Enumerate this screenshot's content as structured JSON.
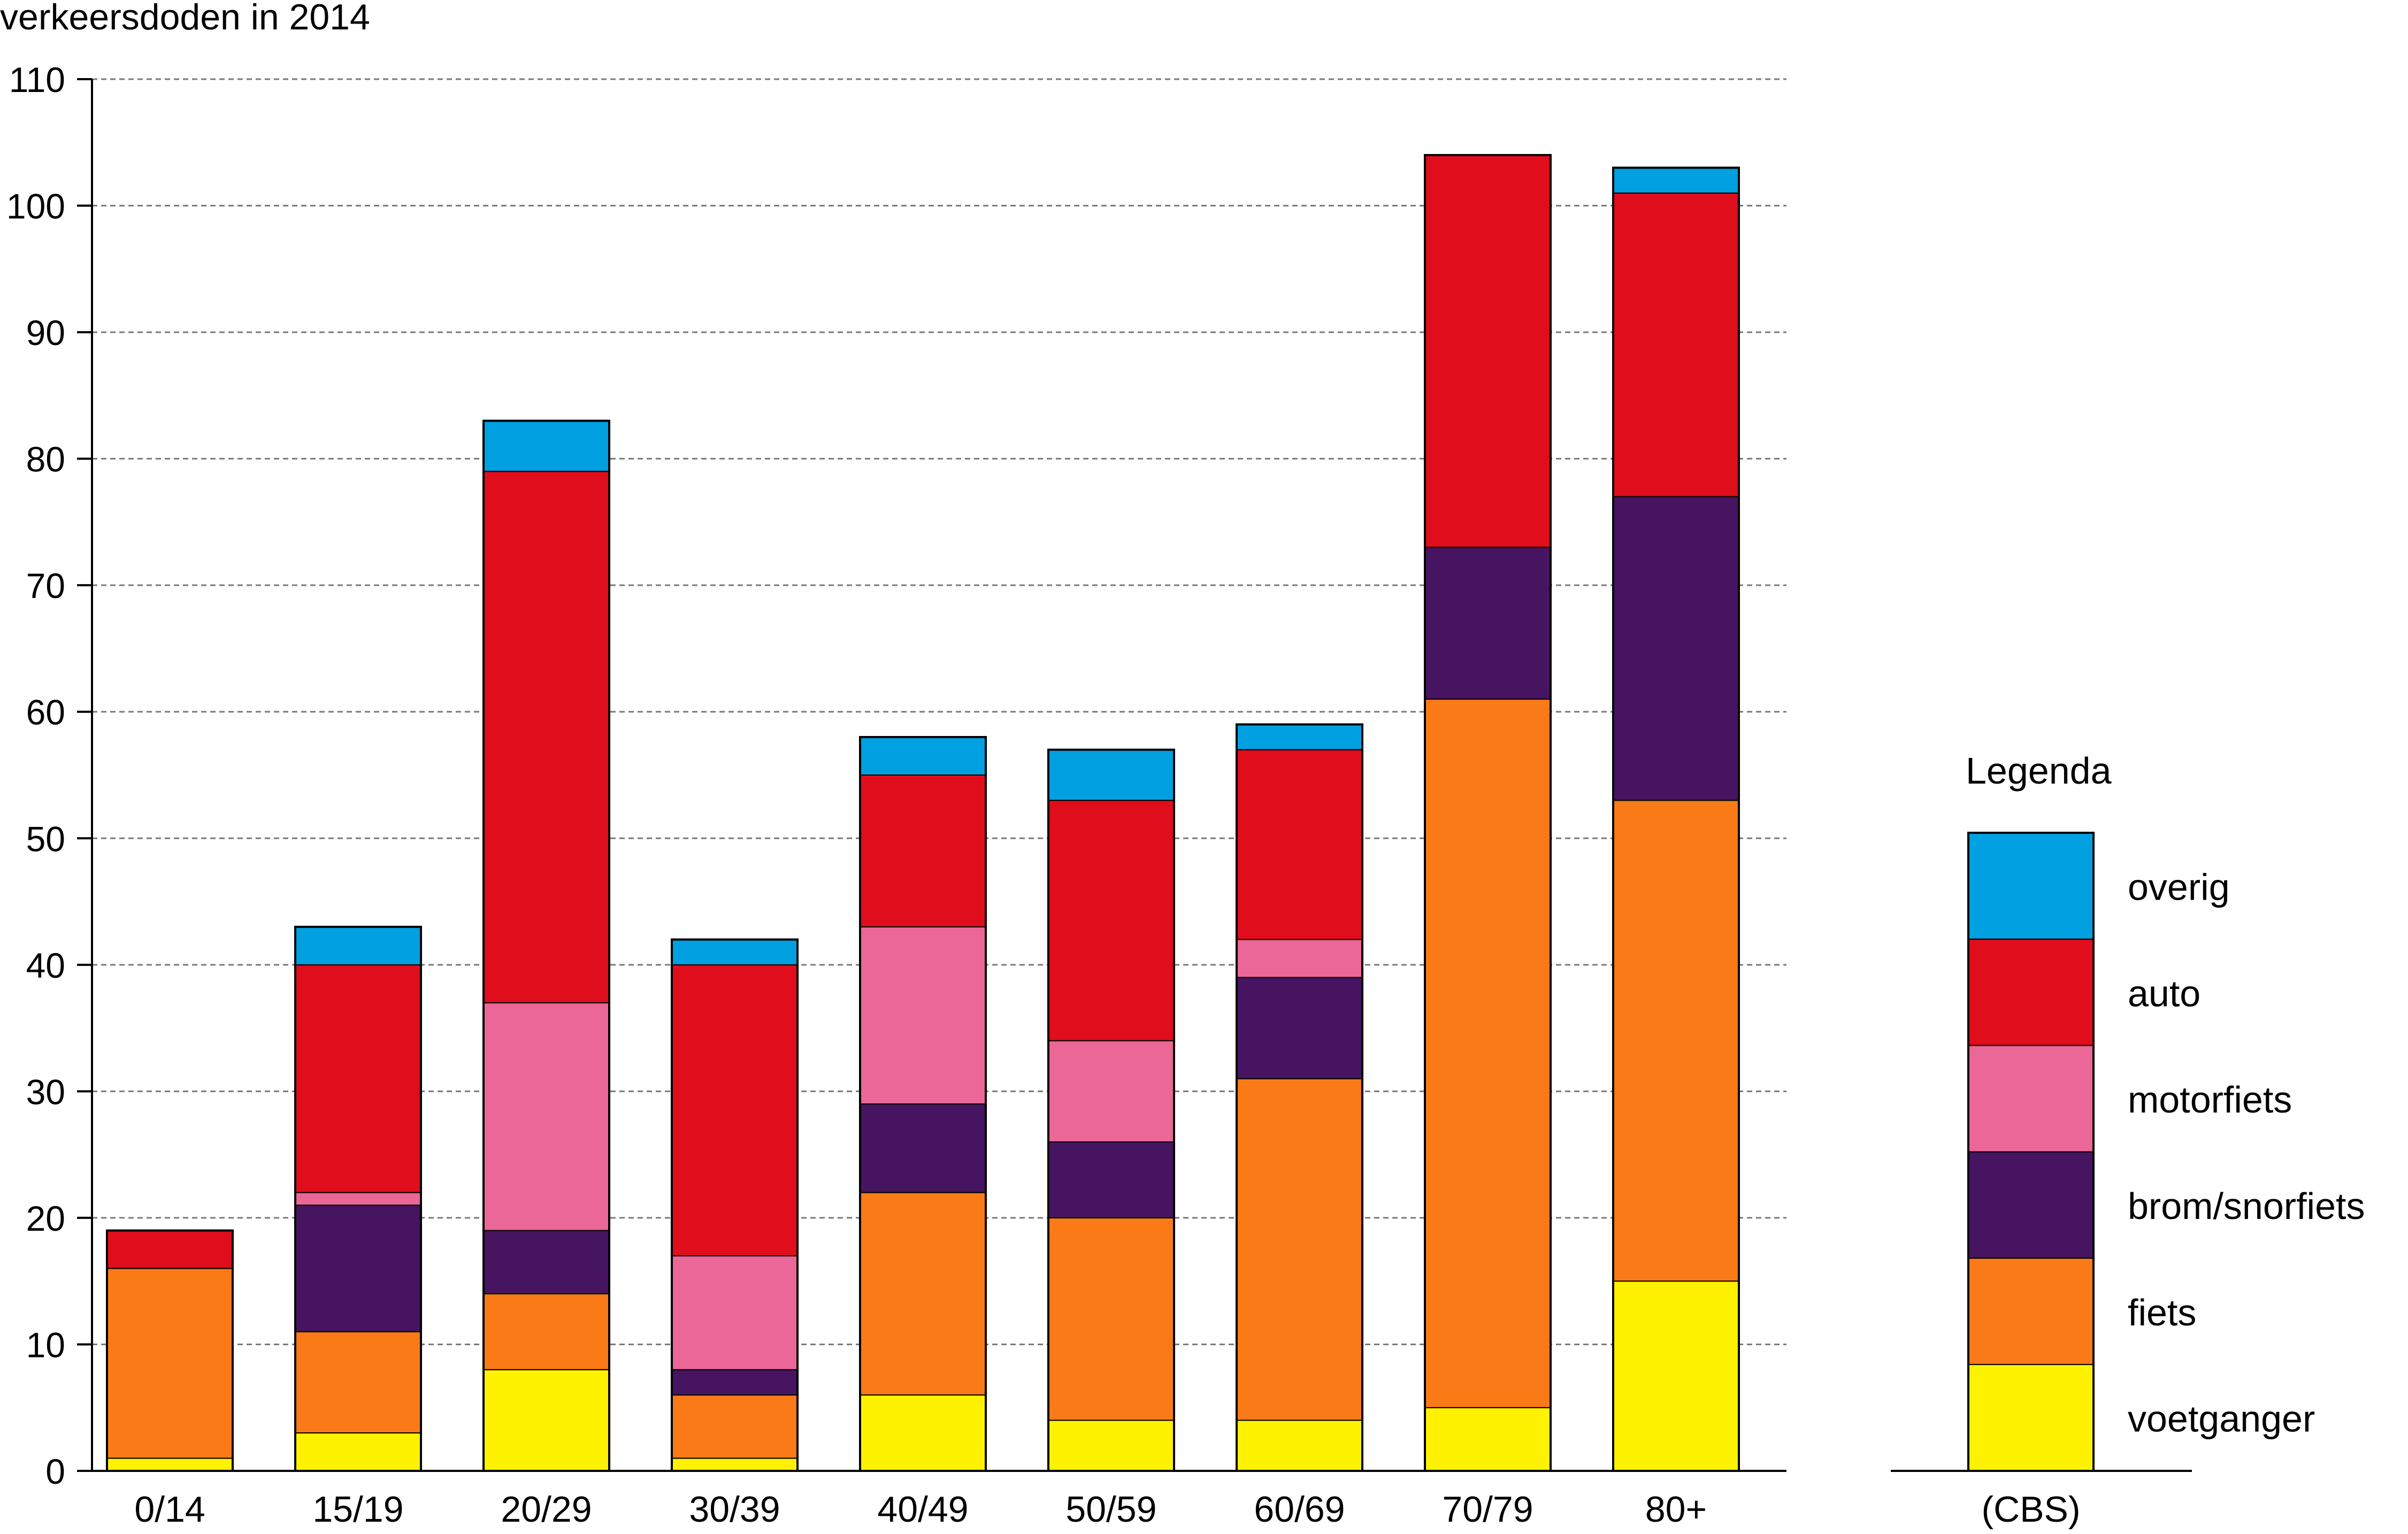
{
  "chart_data": {
    "type": "bar",
    "stacked": true,
    "title": "verkeersdoden in 2014",
    "xlabel": "",
    "ylabel": "",
    "ylim": [
      0,
      110
    ],
    "yticks": [
      0,
      10,
      20,
      30,
      40,
      50,
      60,
      70,
      80,
      90,
      100,
      110
    ],
    "grid": true,
    "categories": [
      "0/14",
      "15/19",
      "20/29",
      "30/39",
      "40/49",
      "50/59",
      "60/69",
      "70/79",
      "80+"
    ],
    "series": [
      {
        "name": "voetganger",
        "color": "#FFF200",
        "values": [
          1,
          3,
          8,
          1,
          6,
          4,
          4,
          5,
          15
        ]
      },
      {
        "name": "fiets",
        "color": "#F97A17",
        "values": [
          15,
          8,
          6,
          5,
          16,
          16,
          27,
          56,
          38
        ]
      },
      {
        "name": "brom/snorfiets",
        "color": "#461461",
        "values": [
          0,
          10,
          5,
          2,
          7,
          6,
          8,
          12,
          24
        ]
      },
      {
        "name": "motorfiets",
        "color": "#EA6797",
        "values": [
          0,
          1,
          18,
          9,
          14,
          8,
          3,
          0,
          0
        ]
      },
      {
        "name": "auto",
        "color": "#E00D1C",
        "values": [
          3,
          18,
          42,
          23,
          12,
          19,
          15,
          31,
          24
        ]
      },
      {
        "name": "overig",
        "color": "#00A0E1",
        "values": [
          0,
          3,
          4,
          2,
          3,
          4,
          2,
          0,
          2
        ]
      }
    ],
    "legend": {
      "title": "Legenda",
      "placement": "right",
      "order": [
        "overig",
        "auto",
        "motorfiets",
        "brom/snorfiets",
        "fiets",
        "voetganger"
      ]
    },
    "source": "(CBS)"
  }
}
